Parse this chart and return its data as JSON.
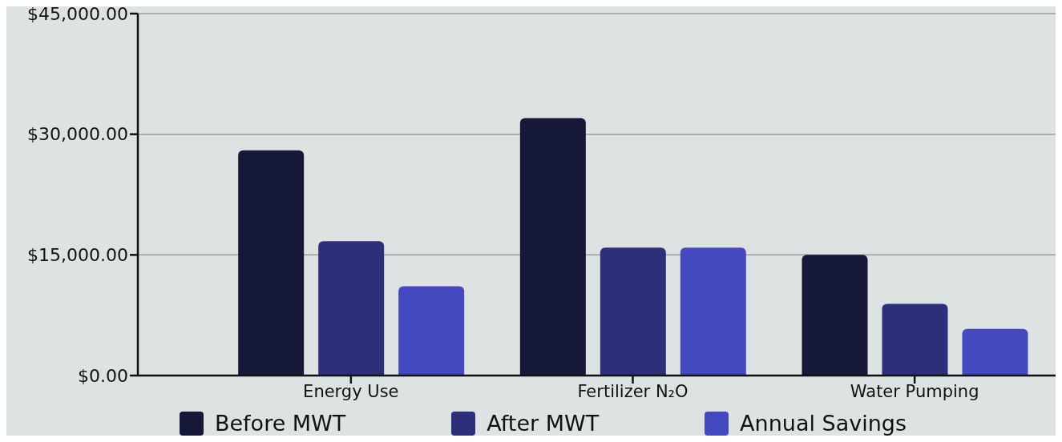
{
  "chart_data": {
    "type": "bar",
    "categories": [
      "Energy Use",
      "Fertilizer N₂O",
      "Water Pumping"
    ],
    "series": [
      {
        "name": "Before MWT",
        "color": "#161838",
        "values": [
          28000,
          32000,
          15000
        ]
      },
      {
        "name": "After MWT",
        "color": "#2c2f7a",
        "values": [
          16700,
          15900,
          8900
        ]
      },
      {
        "name": "Annual Savings",
        "color": "#4549c0",
        "values": [
          11100,
          15900,
          5800
        ]
      }
    ],
    "ylim": [
      0,
      45000
    ],
    "yticks": [
      {
        "value": 0,
        "label": "$0.00"
      },
      {
        "value": 15000,
        "label": "$15,000.00"
      },
      {
        "value": 30000,
        "label": "$30,000.00"
      },
      {
        "value": 45000,
        "label": "$45,000.00"
      }
    ],
    "grid": "y",
    "legend": "bottom"
  }
}
